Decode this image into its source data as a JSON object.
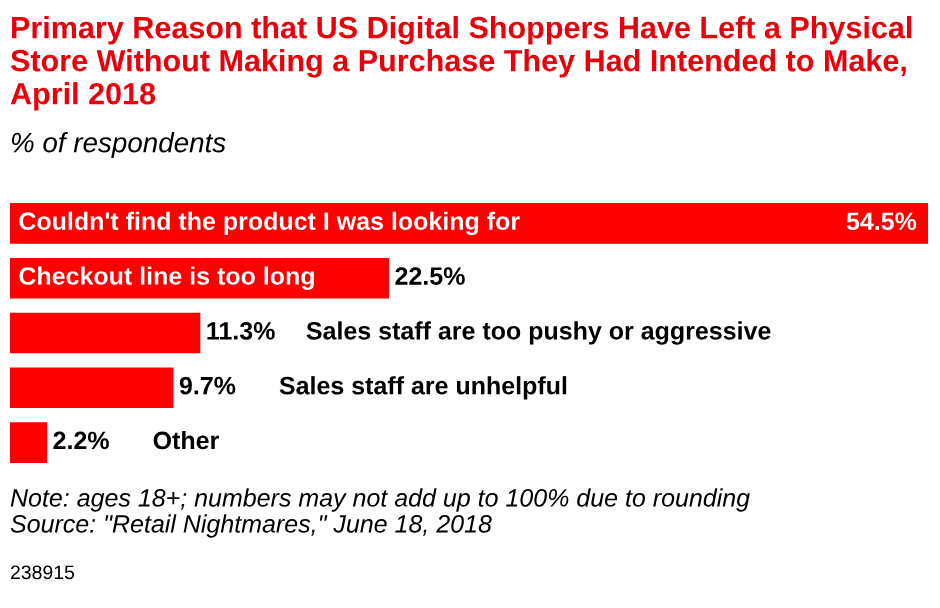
{
  "chart_data": {
    "type": "bar",
    "orientation": "horizontal",
    "title": "Primary Reason that US Digital Shoppers Have Left a Physical Store Without Making a Purchase They Had Intended to Make, April 2018",
    "subtitle": "% of respondents",
    "categories": [
      "Couldn't find the product I was looking for",
      "Checkout line is too long",
      "Sales staff are too pushy or aggressive",
      "Sales staff are unhelpful",
      "Other"
    ],
    "values": [
      54.5,
      22.5,
      11.3,
      9.7,
      2.2
    ],
    "value_labels": [
      "54.5%",
      "22.5%",
      "11.3%",
      "9.7%",
      "2.2%"
    ],
    "color": "#ff0000",
    "annotations": [
      "Note: ages 18+; numbers may not add up to 100% due to rounding",
      "Source: \"Retail Nightmares,\" June 18, 2018",
      "238915"
    ]
  }
}
